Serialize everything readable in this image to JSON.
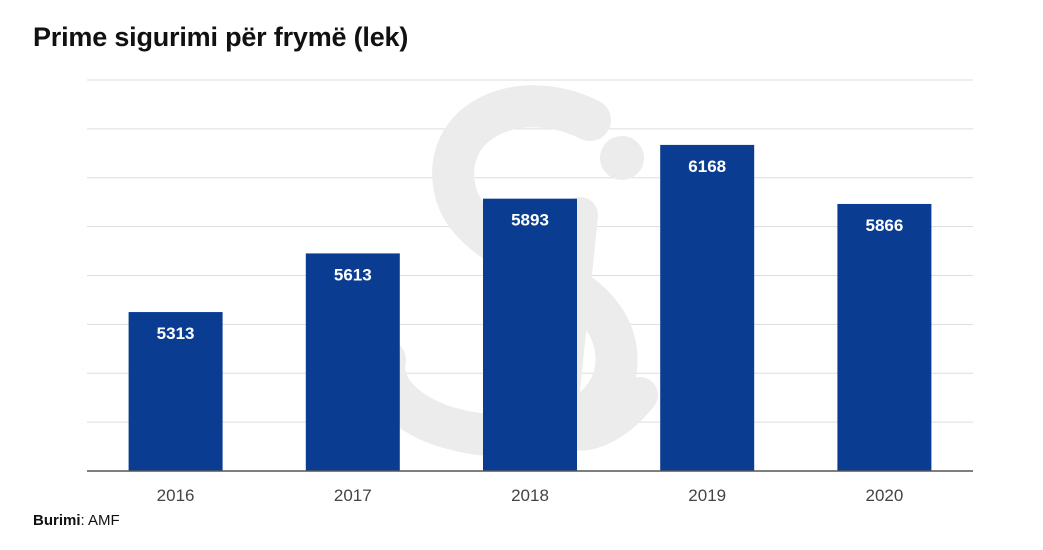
{
  "chart_data": {
    "type": "bar",
    "title": "Prime sigurimi për frymë (lek)",
    "categories": [
      "2016",
      "2017",
      "2018",
      "2019",
      "2020"
    ],
    "values": [
      5313,
      5613,
      5893,
      6168,
      5866
    ],
    "xlabel": "",
    "ylabel": "",
    "ylim": [
      4500,
      6500
    ],
    "grid": true,
    "bar_color": "#0a3d91",
    "data_labels": true
  },
  "footer": {
    "source_label": "Burimi",
    "source_value": "AMF"
  },
  "watermark": {
    "icon": "si-logo-watermark",
    "color": "#eeeeee"
  }
}
